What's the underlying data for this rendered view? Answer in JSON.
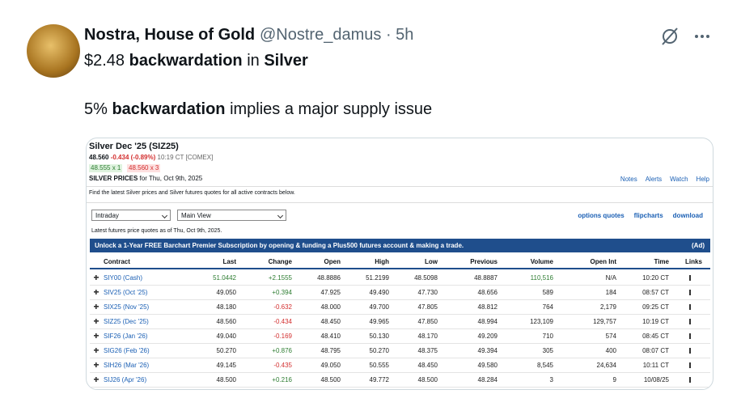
{
  "tweet": {
    "author": "Nostra, House of Gold",
    "handle": "@Nostre_damus",
    "separator": "·",
    "time": "5h",
    "lines": [
      [
        {
          "text": "$2.48 "
        },
        {
          "text": "backwardation",
          "bold": true
        },
        {
          "text": " in "
        },
        {
          "text": "Silver",
          "bold": true
        }
      ],
      [
        {
          "text": "5% "
        },
        {
          "text": "backwardation",
          "bold": true
        },
        {
          "text": " implies a major supply issue"
        }
      ]
    ]
  },
  "image": {
    "title": "Silver Dec '25 (SIZ25)",
    "last": "48.560",
    "change": "-0.434 (-0.89%)",
    "time": "10:19 CT [COMEX]",
    "bid": "48.555 x 1",
    "ask": "48.560 x 3",
    "prices_label": "SILVER PRICES",
    "prices_date": "for Thu, Oct 9th, 2025",
    "tools": [
      "Notes",
      "Alerts",
      "Watch",
      "Help"
    ],
    "description": "Find the latest Silver prices and Silver futures quotes for all active contracts below.",
    "selects": [
      "Intraday",
      "Main View"
    ],
    "links": [
      "options quotes",
      "flipcharts",
      "download"
    ],
    "as_of": "Latest futures price quotes as of Thu, Oct 9th, 2025.",
    "banner": "Unlock a 1-Year FREE Barchart Premier Subscription by opening & funding a Plus500 futures account & making a trade.",
    "banner_tag": "(Ad)",
    "table": {
      "headers": [
        "Contract",
        "Last",
        "Change",
        "Open",
        "High",
        "Low",
        "Previous",
        "Volume",
        "Open Int",
        "Time",
        "Links"
      ],
      "rows": [
        [
          "SIY00 (Cash)",
          "51.0442",
          "+2.1555",
          "48.8886",
          "51.2199",
          "48.5098",
          "48.8887",
          "110,516",
          "N/A",
          "10:20 CT"
        ],
        [
          "SIV25 (Oct '25)",
          "49.050",
          "+0.394",
          "47.925",
          "49.490",
          "47.730",
          "48.656",
          "589",
          "184",
          "08:57 CT"
        ],
        [
          "SIX25 (Nov '25)",
          "48.180",
          "-0.632",
          "48.000",
          "49.700",
          "47.805",
          "48.812",
          "764",
          "2,179",
          "09:25 CT"
        ],
        [
          "SIZ25 (Dec '25)",
          "48.560",
          "-0.434",
          "48.450",
          "49.965",
          "47.850",
          "48.994",
          "123,109",
          "129,757",
          "10:19 CT"
        ],
        [
          "SIF26 (Jan '26)",
          "49.040",
          "-0.169",
          "48.410",
          "50.130",
          "48.170",
          "49.209",
          "710",
          "574",
          "08:45 CT"
        ],
        [
          "SIG26 (Feb '26)",
          "50.270",
          "+0.876",
          "48.795",
          "50.270",
          "48.375",
          "49.394",
          "305",
          "400",
          "08:07 CT"
        ],
        [
          "SIH26 (Mar '26)",
          "49.145",
          "-0.435",
          "49.050",
          "50.555",
          "48.450",
          "49.580",
          "8,545",
          "24,634",
          "10:11 CT"
        ],
        [
          "SIJ26 (Apr '26)",
          "48.500",
          "+0.216",
          "48.500",
          "49.772",
          "48.500",
          "48.284",
          "3",
          "9",
          "10/08/25"
        ]
      ]
    }
  }
}
